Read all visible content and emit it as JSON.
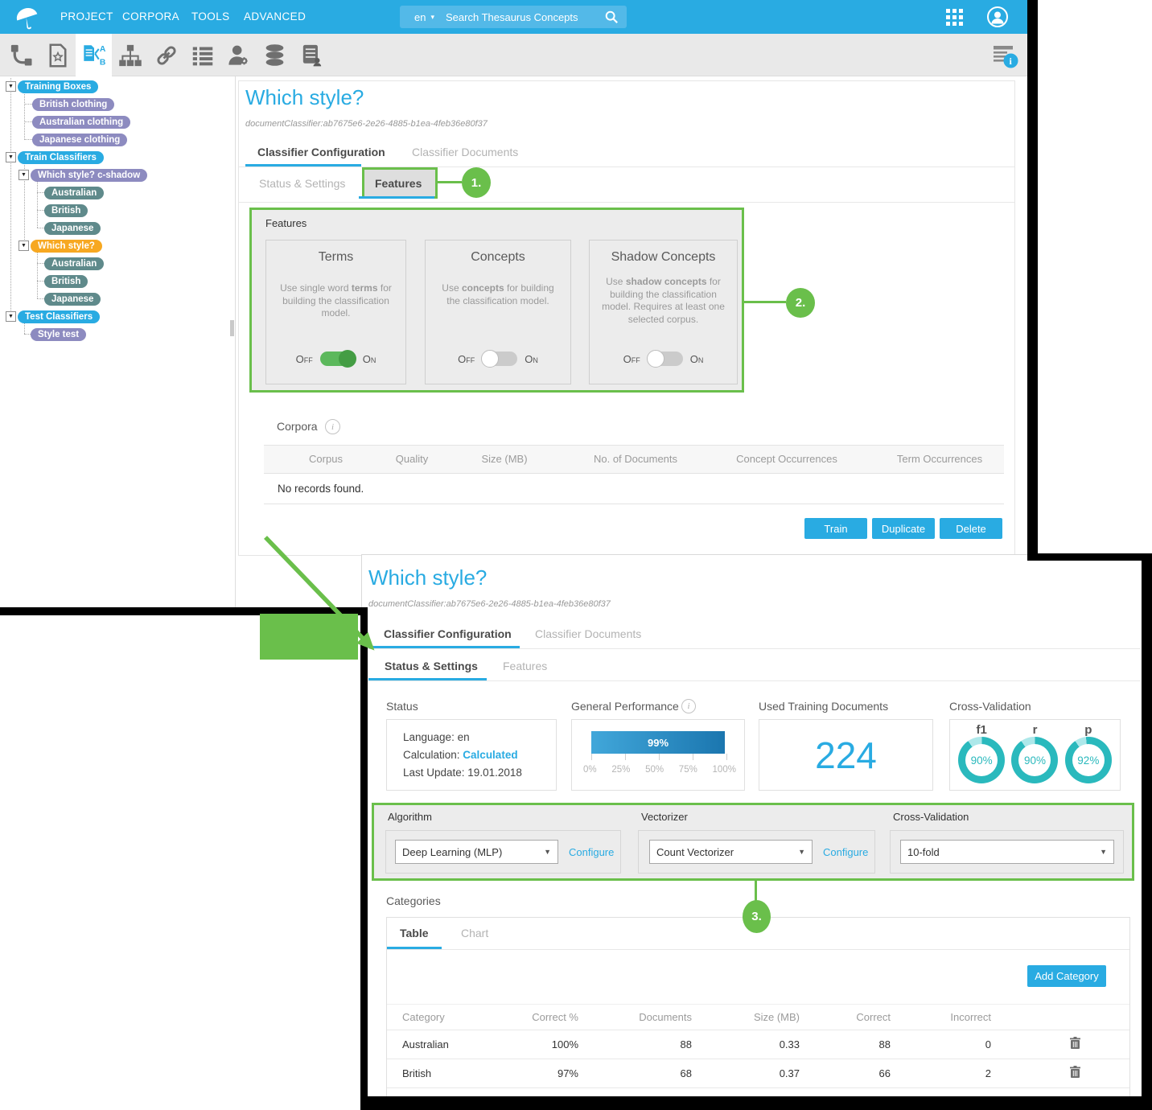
{
  "topbar": {
    "menu": [
      "PROJECT",
      "CORPORA",
      "TOOLS",
      "ADVANCED"
    ],
    "search": {
      "language": "en",
      "placeholder": "Search Thesaurus Concepts"
    }
  },
  "toolbar": {
    "icons": [
      "relations",
      "document-star",
      "classifier",
      "hierarchy",
      "link",
      "list",
      "user-admin",
      "database",
      "server-user"
    ],
    "right_icon": "document-info"
  },
  "sidebar": {
    "tree": [
      {
        "label": "Training Boxes",
        "children": [
          {
            "label": "British clothing"
          },
          {
            "label": "Australian clothing"
          },
          {
            "label": "Japanese clothing"
          }
        ]
      },
      {
        "label": "Train Classifiers",
        "children": [
          {
            "label": "Which style? c-shadow",
            "children": [
              {
                "label": "Australian"
              },
              {
                "label": "British"
              },
              {
                "label": "Japanese"
              }
            ]
          },
          {
            "label": "Which style?",
            "children": [
              {
                "label": "Australian"
              },
              {
                "label": "British"
              },
              {
                "label": "Japanese"
              }
            ]
          }
        ]
      },
      {
        "label": "Test Classifiers",
        "children": [
          {
            "label": "Style test"
          }
        ]
      }
    ]
  },
  "panel1": {
    "title": "Which style?",
    "subtitle": "documentClassifier:ab7675e6-2e26-4885-b1ea-4feb36e80f37",
    "tabs": [
      "Classifier Configuration",
      "Classifier Documents"
    ],
    "subtabs": [
      "Status & Settings",
      "Features"
    ],
    "features": {
      "label": "Features",
      "off_label": "Off",
      "on_label": "On",
      "cards": [
        {
          "title": "Terms",
          "desc_pre": "Use single word ",
          "desc_bold": "terms",
          "desc_post": " for building the classification model.",
          "state": "on"
        },
        {
          "title": "Concepts",
          "desc_pre": "Use ",
          "desc_bold": "concepts",
          "desc_post": " for building the classification model.",
          "state": "off"
        },
        {
          "title": "Shadow Concepts",
          "desc_pre": "Use ",
          "desc_bold": "shadow concepts",
          "desc_post": " for building the classification model. Requires at least one selected corpus.",
          "state": "off"
        }
      ]
    },
    "corpora": {
      "label": "Corpora",
      "columns": [
        "Corpus",
        "Quality",
        "Size (MB)",
        "No. of Documents",
        "Concept Occurrences",
        "Term Occurrences"
      ],
      "empty": "No records found."
    },
    "actions": [
      "Train",
      "Duplicate",
      "Delete"
    ]
  },
  "panel2": {
    "title": "Which style?",
    "subtitle": "documentClassifier:ab7675e6-2e26-4885-b1ea-4feb36e80f37",
    "tabs": [
      "Classifier Configuration",
      "Classifier Documents"
    ],
    "subtabs": [
      "Status & Settings",
      "Features"
    ],
    "status": {
      "label": "Status",
      "language": "Language: en",
      "calculation_label": "Calculation: ",
      "calculation_value": "Calculated",
      "last_update": "Last Update: 19.01.2018"
    },
    "performance": {
      "label": "General Performance",
      "value": "99%",
      "ticks": [
        "0%",
        "25%",
        "50%",
        "75%",
        "100%"
      ]
    },
    "training_docs": {
      "label": "Used Training Documents",
      "value": "224"
    },
    "cross_validation": {
      "label": "Cross-Validation",
      "donuts": [
        {
          "metric": "f1",
          "value": "90%"
        },
        {
          "metric": "r",
          "value": "90%"
        },
        {
          "metric": "p",
          "value": "92%"
        }
      ]
    },
    "settings": {
      "algorithm_label": "Algorithm",
      "algorithm_value": "Deep Learning (MLP)",
      "configure": "Configure",
      "vectorizer_label": "Vectorizer",
      "vectorizer_value": "Count Vectorizer",
      "crossval_label": "Cross-Validation",
      "crossval_value": "10-fold"
    },
    "categories": {
      "label": "Categories",
      "tabs": [
        "Table",
        "Chart"
      ],
      "add_button": "Add Category",
      "columns": [
        "Category",
        "Correct %",
        "Documents",
        "Size (MB)",
        "Correct",
        "Incorrect"
      ],
      "rows": [
        {
          "category": "Australian",
          "correct_pct": "100%",
          "documents": "88",
          "size_mb": "0.33",
          "correct": "88",
          "incorrect": "0"
        },
        {
          "category": "British",
          "correct_pct": "97%",
          "documents": "68",
          "size_mb": "0.37",
          "correct": "66",
          "incorrect": "2"
        }
      ]
    }
  },
  "annotations": {
    "badge1": "1.",
    "badge2": "2.",
    "badge3": "3."
  },
  "colors": {
    "accent": "#29abe2",
    "annotation_green": "#6abf4b",
    "toggle_on": "#5cb85c",
    "donut_teal": "#2ab9bd",
    "pill_cyan": "#29abe2",
    "pill_purple": "#8d8bc0",
    "pill_slate": "#5f8a8b",
    "pill_orange": "#f7a821"
  }
}
